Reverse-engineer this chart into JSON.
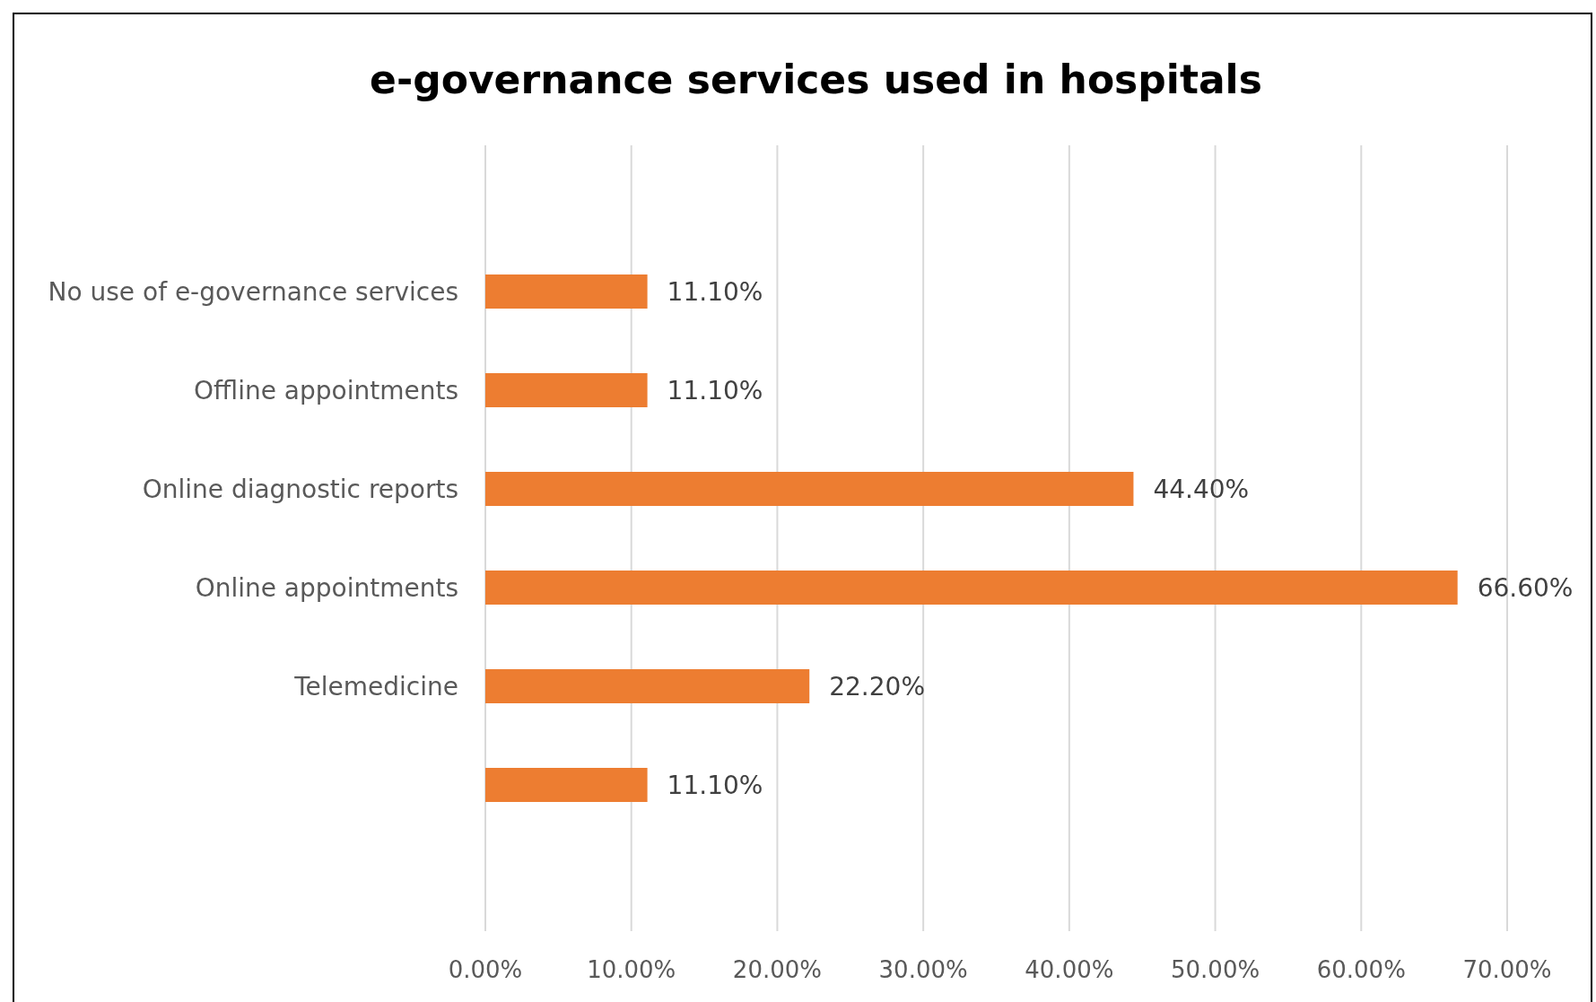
{
  "chart_data": {
    "type": "bar",
    "orientation": "horizontal",
    "title": "e-governance services used in hospitals",
    "categories": [
      "No use of e-governance services",
      "Offline appointments",
      "Online diagnostic reports",
      "Online appointments",
      "Telemedicine",
      null
    ],
    "values": [
      11.1,
      11.1,
      44.4,
      66.6,
      22.2,
      11.1
    ],
    "value_labels": [
      "11.10%",
      "11.10%",
      "44.40%",
      "66.60%",
      "22.20%",
      "11.10%"
    ],
    "color": "#ed7d31",
    "xlim": [
      0,
      70
    ],
    "xticks": [
      {
        "value": 0,
        "label": "0.00%"
      },
      {
        "value": 10,
        "label": "10.00%"
      },
      {
        "value": 20,
        "label": "20.00%"
      },
      {
        "value": 30,
        "label": "30.00%"
      },
      {
        "value": 40,
        "label": "40.00%"
      },
      {
        "value": 50,
        "label": "50.00%"
      },
      {
        "value": 60,
        "label": "60.00%"
      },
      {
        "value": 70,
        "label": "70.00%"
      }
    ],
    "grid": "x"
  }
}
